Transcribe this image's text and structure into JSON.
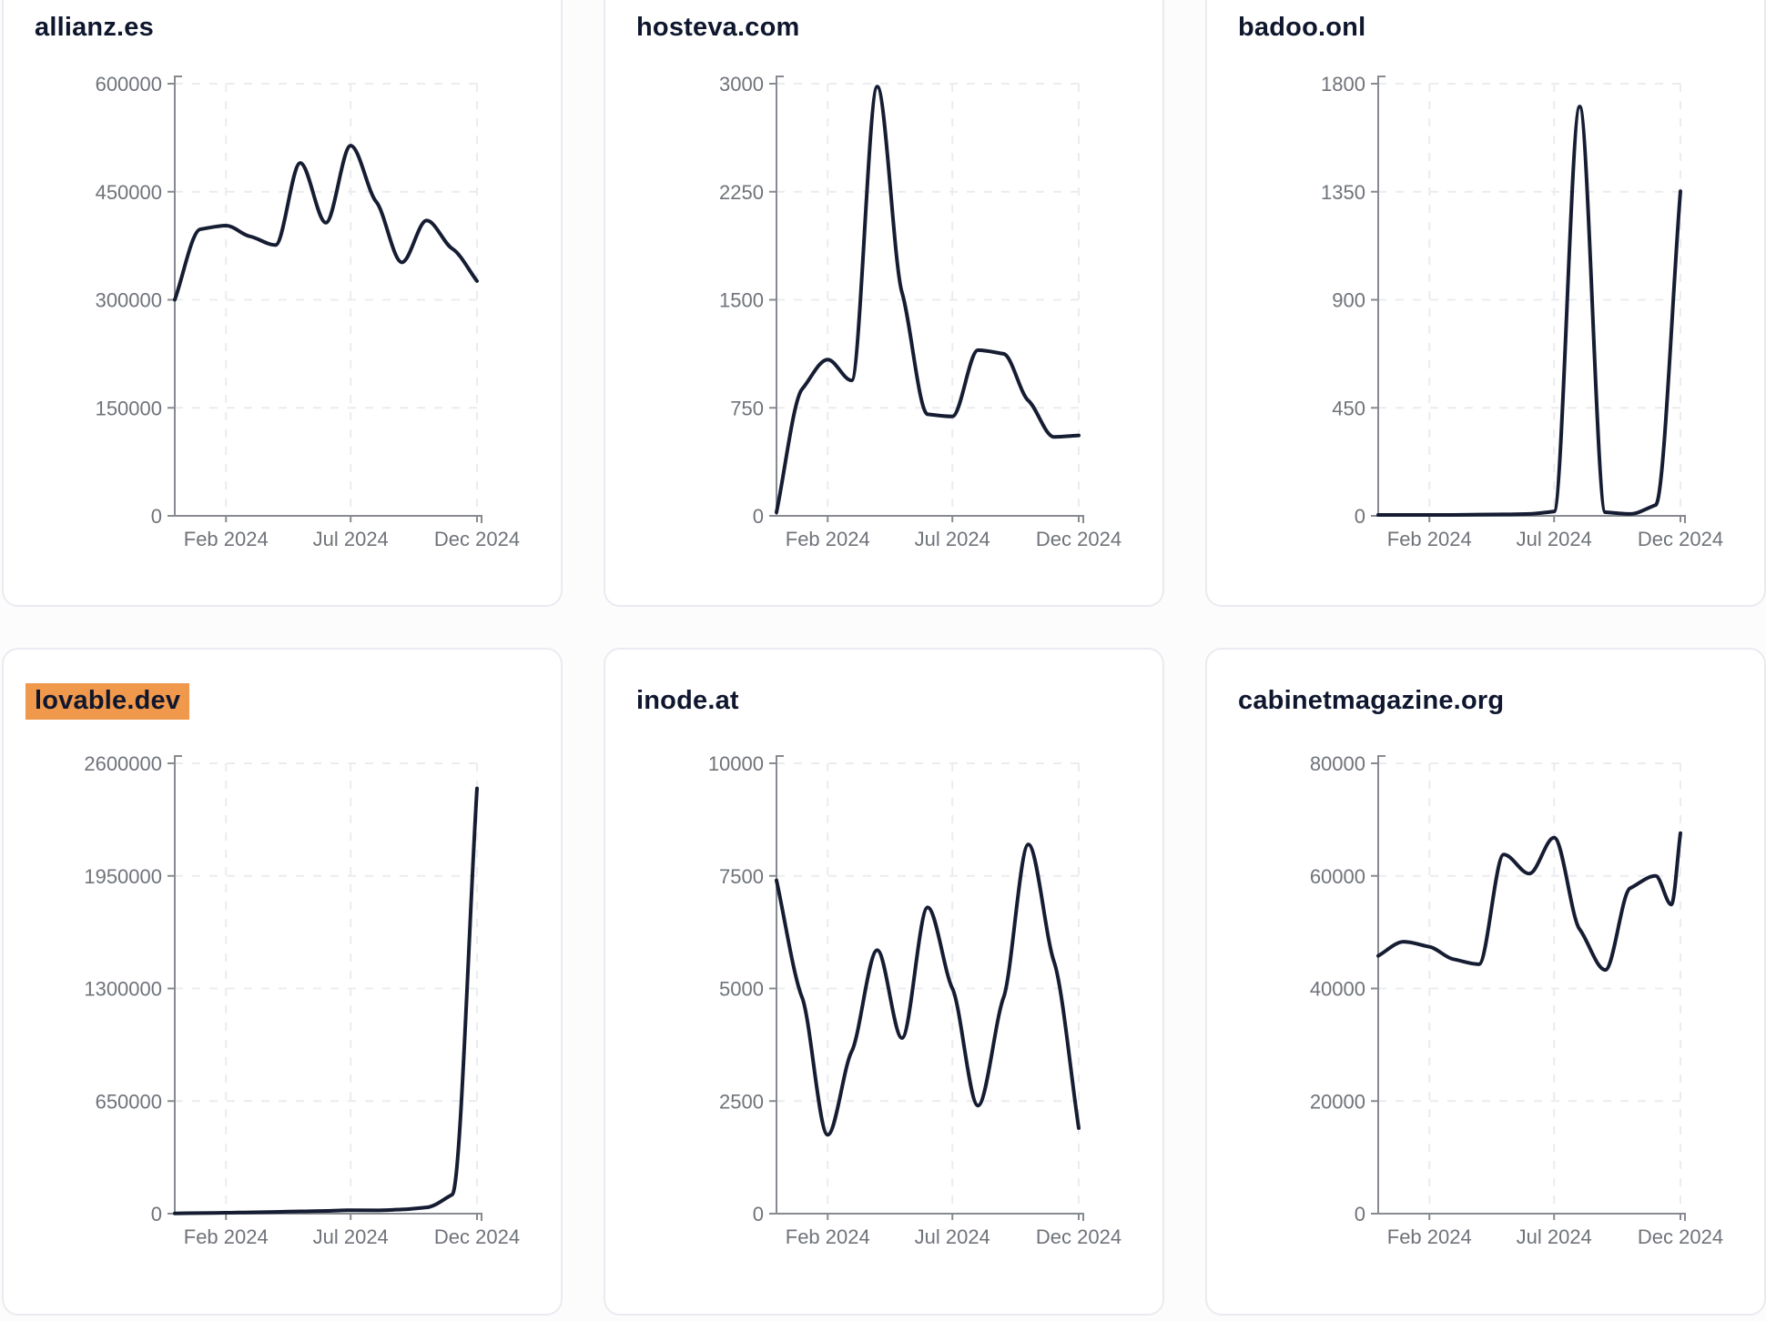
{
  "page": {
    "background": "#fcfcfd",
    "card_background": "#ffffff",
    "card_border": "#e9ebf0",
    "line_color": "#161d33",
    "title_color": "#0f172e",
    "axis_color": "#878a90",
    "tick_label_color": "#6f7379",
    "grid_color": "#ebecef",
    "highlight_color": "#F0984C"
  },
  "chart_data": [
    {
      "type": "line",
      "title": "allianz.es",
      "highlighted": false,
      "ylim": [
        0,
        600000
      ],
      "yticks": [
        600000,
        450000,
        300000,
        150000,
        0
      ],
      "xticks": [
        {
          "label": "Feb 2024",
          "date": "2024-02"
        },
        {
          "label": "Jul 2024",
          "date": "2024-07"
        },
        {
          "label": "Dec 2024",
          "date": "2024-12"
        }
      ],
      "x_domain": [
        "2023-12",
        "2024-12"
      ],
      "grid": true,
      "series": [
        {
          "date": "2023-12",
          "value": 300000
        },
        {
          "date": "2024-01",
          "value": 398000
        },
        {
          "date": "2024-02",
          "value": 403000
        },
        {
          "date": "2024-03",
          "value": 388000
        },
        {
          "date": "2024-04",
          "value": 376000
        },
        {
          "date": "2024-05",
          "value": 490000
        },
        {
          "date": "2024-06",
          "value": 407000
        },
        {
          "date": "2024-07",
          "value": 514000
        },
        {
          "date": "2024-08",
          "value": 436000
        },
        {
          "date": "2024-09",
          "value": 352000
        },
        {
          "date": "2024-10",
          "value": 410000
        },
        {
          "date": "2024-11",
          "value": 371000
        },
        {
          "date": "2024-12",
          "value": 326000
        }
      ]
    },
    {
      "type": "line",
      "title": "hosteva.com",
      "highlighted": false,
      "ylim": [
        0,
        3000
      ],
      "yticks": [
        3000,
        2250,
        1500,
        750,
        0
      ],
      "xticks": [
        {
          "label": "Feb 2024",
          "date": "2024-02"
        },
        {
          "label": "Jul 2024",
          "date": "2024-07"
        },
        {
          "label": "Dec 2024",
          "date": "2024-12"
        }
      ],
      "x_domain": [
        "2023-12",
        "2024-12"
      ],
      "grid": true,
      "series": [
        {
          "date": "2023-12",
          "value": 25
        },
        {
          "date": "2024-01",
          "value": 880
        },
        {
          "date": "2024-02",
          "value": 1085
        },
        {
          "date": "2024-03",
          "value": 940
        },
        {
          "date": "2024-04",
          "value": 2980
        },
        {
          "date": "2024-05",
          "value": 1550
        },
        {
          "date": "2024-06",
          "value": 705
        },
        {
          "date": "2024-07",
          "value": 690
        },
        {
          "date": "2024-08",
          "value": 1150
        },
        {
          "date": "2024-09",
          "value": 1125
        },
        {
          "date": "2024-10",
          "value": 800
        },
        {
          "date": "2024-11",
          "value": 548
        },
        {
          "date": "2024-12",
          "value": 558
        }
      ]
    },
    {
      "type": "line",
      "title": "badoo.onl",
      "highlighted": false,
      "ylim": [
        0,
        1800
      ],
      "yticks": [
        1800,
        1350,
        900,
        450,
        0
      ],
      "xticks": [
        {
          "label": "Feb 2024",
          "date": "2024-02"
        },
        {
          "label": "Jul 2024",
          "date": "2024-07"
        },
        {
          "label": "Dec 2024",
          "date": "2024-12"
        }
      ],
      "x_domain": [
        "2023-12",
        "2024-12"
      ],
      "grid": true,
      "series": [
        {
          "date": "2023-12",
          "value": 4
        },
        {
          "date": "2024-01",
          "value": 4
        },
        {
          "date": "2024-02",
          "value": 4
        },
        {
          "date": "2024-03",
          "value": 4
        },
        {
          "date": "2024-04",
          "value": 5
        },
        {
          "date": "2024-05",
          "value": 6
        },
        {
          "date": "2024-06",
          "value": 8
        },
        {
          "date": "2024-07",
          "value": 18
        },
        {
          "date": "2024-08",
          "value": 1705
        },
        {
          "date": "2024-09",
          "value": 15
        },
        {
          "date": "2024-10",
          "value": 8
        },
        {
          "date": "2024-11",
          "value": 45
        },
        {
          "date": "2024-12",
          "value": 1352
        }
      ]
    },
    {
      "type": "line",
      "title": "lovable.dev",
      "highlighted": true,
      "ylim": [
        0,
        2600000
      ],
      "yticks": [
        2600000,
        1950000,
        1300000,
        650000,
        0
      ],
      "xticks": [
        {
          "label": "Feb 2024",
          "date": "2024-02"
        },
        {
          "label": "Jul 2024",
          "date": "2024-07"
        },
        {
          "label": "Dec 2024",
          "date": "2024-12"
        }
      ],
      "x_domain": [
        "2023-12",
        "2024-12"
      ],
      "grid": true,
      "series": [
        {
          "date": "2023-12",
          "value": 1500
        },
        {
          "date": "2024-01",
          "value": 3000
        },
        {
          "date": "2024-02",
          "value": 5000
        },
        {
          "date": "2024-03",
          "value": 7500
        },
        {
          "date": "2024-04",
          "value": 10000
        },
        {
          "date": "2024-05",
          "value": 13000
        },
        {
          "date": "2024-06",
          "value": 16000
        },
        {
          "date": "2024-07",
          "value": 20000
        },
        {
          "date": "2024-08",
          "value": 19000
        },
        {
          "date": "2024-09",
          "value": 24000
        },
        {
          "date": "2024-10",
          "value": 36000
        },
        {
          "date": "2024-11",
          "value": 110000
        },
        {
          "date": "2024-12",
          "value": 2455000
        }
      ]
    },
    {
      "type": "line",
      "title": "inode.at",
      "highlighted": false,
      "ylim": [
        0,
        10000
      ],
      "yticks": [
        10000,
        7500,
        5000,
        2500,
        0
      ],
      "xticks": [
        {
          "label": "Feb 2024",
          "date": "2024-02"
        },
        {
          "label": "Jul 2024",
          "date": "2024-07"
        },
        {
          "label": "Dec 2024",
          "date": "2024-12"
        }
      ],
      "x_domain": [
        "2023-12",
        "2024-12"
      ],
      "grid": true,
      "series": [
        {
          "date": "2023-12",
          "value": 7400
        },
        {
          "date": "2024-01",
          "value": 4800
        },
        {
          "date": "2024-02",
          "value": 1750
        },
        {
          "date": "2024-03",
          "value": 3600
        },
        {
          "date": "2024-04",
          "value": 5850
        },
        {
          "date": "2024-05",
          "value": 3900
        },
        {
          "date": "2024-06",
          "value": 6800
        },
        {
          "date": "2024-07",
          "value": 5000
        },
        {
          "date": "2024-08",
          "value": 2400
        },
        {
          "date": "2024-09",
          "value": 4800
        },
        {
          "date": "2024-10",
          "value": 8200
        },
        {
          "date": "2024-11",
          "value": 5600
        },
        {
          "date": "2024-12",
          "value": 1900
        }
      ]
    },
    {
      "type": "line",
      "title": "cabinetmagazine.org",
      "highlighted": false,
      "ylim": [
        0,
        80000
      ],
      "yticks": [
        80000,
        60000,
        40000,
        20000,
        0
      ],
      "xticks": [
        {
          "label": "Feb 2024",
          "date": "2024-02"
        },
        {
          "label": "Jul 2024",
          "date": "2024-07"
        },
        {
          "label": "Dec 2024",
          "date": "2024-12"
        }
      ],
      "x_domain": [
        "2023-12",
        "2024-12"
      ],
      "grid": true,
      "series": [
        {
          "date": "2023-12",
          "value": 45800
        },
        {
          "date": "2024-01",
          "value": 48300
        },
        {
          "date": "2024-02",
          "value": 47400
        },
        {
          "date": "2024-03",
          "value": 45200
        },
        {
          "date": "2024-04",
          "value": 44300
        },
        {
          "date": "2024-05",
          "value": 63800
        },
        {
          "date": "2024-06",
          "value": 60400
        },
        {
          "date": "2024-07",
          "value": 66800
        },
        {
          "date": "2024-08",
          "value": 50500
        },
        {
          "date": "2024-09",
          "value": 43300
        },
        {
          "date": "2024-10",
          "value": 57800
        },
        {
          "date": "2024-11",
          "value": 60000
        },
        {
          "date": "2024-11-20",
          "value": 54900
        },
        {
          "date": "2024-12",
          "value": 67600
        }
      ]
    }
  ]
}
